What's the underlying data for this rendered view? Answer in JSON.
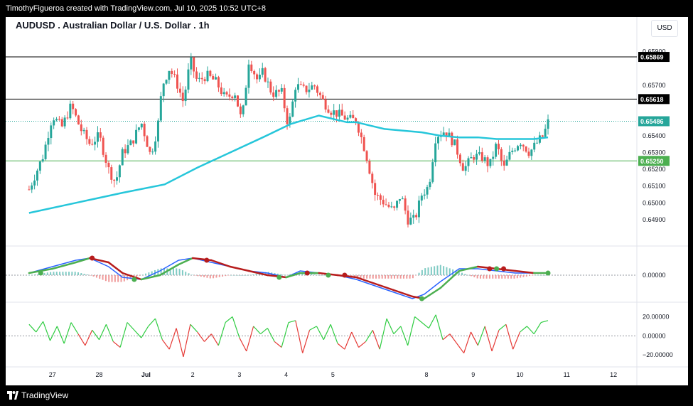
{
  "header": {
    "attribution": "TimothyFigueroa created with TradingView.com, Jul 10, 2025 10:52 UTC+8",
    "symbol_title": "AUDUSD . Australian Dollar / U.S. Dollar . 1h",
    "currency": "USD"
  },
  "footer": {
    "brand": "TradingView"
  },
  "colors": {
    "up": "#26a69a",
    "down": "#ef5350",
    "ma": "#26c6da",
    "macd": "#2962ff",
    "signal_up": "#4caf50",
    "signal_down": "#b71c1c",
    "rsi_up": "#2ecc40",
    "rsi_down": "#e53935",
    "level_black": "#000000",
    "level_green": "#4caf50"
  },
  "chart_data": [
    {
      "type": "candlestick",
      "panel": "price",
      "y_range": [
        0.6476,
        0.6592
      ],
      "price_ticks": [
        "0.65900",
        "0.65700",
        "0.65400",
        "0.65300",
        "0.65200",
        "0.65100",
        "0.65000",
        "0.64900"
      ],
      "price_tick_values": [
        0.659,
        0.657,
        0.654,
        0.653,
        0.652,
        0.651,
        0.65,
        0.649
      ],
      "x_labels": [
        "27",
        "28",
        "Jul",
        "2",
        "3",
        "4",
        "5",
        "8",
        "9",
        "10",
        "11",
        "12"
      ],
      "x_label_positions": [
        0.5,
        1.5,
        2.5,
        3.5,
        4.5,
        5.5,
        6.5,
        8.5,
        9.5,
        10.5,
        11.5,
        12.5
      ],
      "x_range": [
        -0.5,
        13.0
      ],
      "levels": [
        {
          "label": "0.65869",
          "value": 0.65869,
          "style": "black-line"
        },
        {
          "label": "0.65618",
          "value": 0.65618,
          "style": "black-line"
        },
        {
          "label": "0.65486",
          "value": 0.65486,
          "style": "teal-dotted-current"
        },
        {
          "label": "0.65250",
          "value": 0.6525,
          "style": "green-line"
        }
      ],
      "close_path": [
        [
          0.0,
          0.6508
        ],
        [
          0.3,
          0.6528
        ],
        [
          0.5,
          0.6552
        ],
        [
          0.7,
          0.6545
        ],
        [
          0.9,
          0.6558
        ],
        [
          1.1,
          0.6544
        ],
        [
          1.3,
          0.6535
        ],
        [
          1.5,
          0.654
        ],
        [
          1.7,
          0.652
        ],
        [
          1.85,
          0.6512
        ],
        [
          2.0,
          0.653
        ],
        [
          2.2,
          0.6536
        ],
        [
          2.4,
          0.6548
        ],
        [
          2.6,
          0.6528
        ],
        [
          2.75,
          0.6545
        ],
        [
          2.85,
          0.657
        ],
        [
          3.0,
          0.658
        ],
        [
          3.15,
          0.6572
        ],
        [
          3.3,
          0.656
        ],
        [
          3.45,
          0.6585
        ],
        [
          3.6,
          0.6572
        ],
        [
          3.8,
          0.6576
        ],
        [
          4.0,
          0.6572
        ],
        [
          4.2,
          0.6562
        ],
        [
          4.4,
          0.6566
        ],
        [
          4.55,
          0.6548
        ],
        [
          4.7,
          0.6585
        ],
        [
          4.9,
          0.6572
        ],
        [
          5.0,
          0.6578
        ],
        [
          5.2,
          0.6565
        ],
        [
          5.4,
          0.6566
        ],
        [
          5.55,
          0.6545
        ],
        [
          5.7,
          0.657
        ],
        [
          5.9,
          0.6567
        ],
        [
          6.1,
          0.657
        ],
        [
          6.3,
          0.656
        ],
        [
          6.45,
          0.6555
        ],
        [
          6.6,
          0.6553
        ],
        [
          6.8,
          0.655
        ],
        [
          7.0,
          0.6549
        ],
        [
          7.2,
          0.653
        ],
        [
          7.4,
          0.6505
        ],
        [
          7.6,
          0.65
        ],
        [
          7.8,
          0.6495
        ],
        [
          7.95,
          0.6505
        ],
        [
          8.1,
          0.649
        ],
        [
          8.25,
          0.649
        ],
        [
          8.4,
          0.6505
        ],
        [
          8.55,
          0.651
        ],
        [
          8.7,
          0.654
        ],
        [
          8.9,
          0.6543
        ],
        [
          9.1,
          0.6535
        ],
        [
          9.3,
          0.652
        ],
        [
          9.5,
          0.6528
        ],
        [
          9.7,
          0.6527
        ],
        [
          9.85,
          0.6522
        ],
        [
          10.0,
          0.6535
        ],
        [
          10.15,
          0.652
        ],
        [
          10.3,
          0.653
        ],
        [
          10.5,
          0.6537
        ],
        [
          10.7,
          0.653
        ],
        [
          10.9,
          0.6537
        ],
        [
          11.0,
          0.654
        ],
        [
          11.1,
          0.6548
        ]
      ]
    },
    {
      "type": "line",
      "panel": "price",
      "name": "",
      "x": [
        0.0,
        1.0,
        2.0,
        2.9,
        3.6,
        4.3,
        5.0,
        5.6,
        6.2,
        6.8,
        7.0,
        7.3,
        7.6,
        8.0,
        8.4,
        8.8,
        9.2,
        9.6,
        10.0,
        10.4,
        10.8,
        11.1
      ],
      "values": [
        0.6494,
        0.65,
        0.6506,
        0.6511,
        0.6521,
        0.653,
        0.6539,
        0.6547,
        0.6552,
        0.6548,
        0.6548,
        0.6546,
        0.6544,
        0.6543,
        0.6542,
        0.654,
        0.6539,
        0.6539,
        0.6538,
        0.6538,
        0.6538,
        0.6539
      ]
    },
    {
      "type": "macd",
      "panel": "macd",
      "y_range": [
        -0.0011,
        0.0011
      ],
      "ticks": [
        "0.00000"
      ],
      "tick_values": [
        0
      ],
      "macd_x": [
        0.0,
        0.5,
        1.0,
        1.3,
        1.7,
        2.0,
        2.4,
        2.8,
        3.2,
        3.5,
        3.9,
        4.3,
        4.7,
        5.1,
        5.5,
        5.8,
        6.2,
        6.6,
        7.0,
        7.4,
        7.8,
        8.2,
        8.45,
        8.8,
        9.2,
        9.6,
        10.0,
        10.4,
        10.8,
        11.1
      ],
      "macd": [
        0.0001,
        0.0004,
        0.0007,
        0.0008,
        0.0004,
        -0.0001,
        -0.0002,
        0.0002,
        0.0007,
        0.0008,
        0.0006,
        0.0004,
        0.0002,
        0.0001,
        -0.0001,
        0.0002,
        0.0001,
        0.0,
        -0.0002,
        -0.0005,
        -0.0008,
        -0.0011,
        -0.0009,
        -0.0003,
        0.0003,
        0.0003,
        0.0002,
        0.0001,
        0.0001,
        0.0001
      ],
      "signal": [
        0.0001,
        0.0003,
        0.0006,
        0.0008,
        0.0006,
        0.0001,
        -0.0002,
        0.0,
        0.0005,
        0.0008,
        0.0007,
        0.0004,
        0.0002,
        0.0,
        -0.0001,
        0.0001,
        0.0001,
        0.0,
        -0.0001,
        -0.0004,
        -0.0007,
        -0.001,
        -0.0011,
        -0.0006,
        0.0002,
        0.0004,
        0.0003,
        0.0002,
        0.0001,
        0.0001
      ],
      "cross_points": [
        [
          0.25,
          0.0001,
          "up"
        ],
        [
          1.35,
          0.0008,
          "down"
        ],
        [
          2.25,
          -0.0002,
          "up"
        ],
        [
          3.8,
          0.0007,
          "down"
        ],
        [
          5.35,
          -0.0001,
          "up"
        ],
        [
          5.95,
          0.0001,
          "down"
        ],
        [
          6.4,
          0.0,
          "up"
        ],
        [
          6.75,
          0.0,
          "down"
        ],
        [
          8.4,
          -0.0011,
          "up"
        ],
        [
          9.85,
          0.0003,
          "down"
        ],
        [
          10.0,
          0.0003,
          "up"
        ],
        [
          10.15,
          0.0003,
          "down"
        ],
        [
          11.1,
          0.0001,
          "up"
        ]
      ]
    },
    {
      "type": "line",
      "panel": "oscillator",
      "y_range": [
        -28,
        30
      ],
      "ticks": [
        "20.00000",
        "0.00000",
        "−20.00000"
      ],
      "tick_values": [
        20,
        0,
        -20
      ],
      "x": [
        0.0,
        0.15,
        0.3,
        0.45,
        0.6,
        0.75,
        0.9,
        1.05,
        1.2,
        1.35,
        1.5,
        1.65,
        1.8,
        1.95,
        2.1,
        2.25,
        2.4,
        2.55,
        2.7,
        2.85,
        3.0,
        3.15,
        3.3,
        3.45,
        3.6,
        3.75,
        3.9,
        4.05,
        4.2,
        4.35,
        4.5,
        4.65,
        4.8,
        4.95,
        5.1,
        5.25,
        5.4,
        5.55,
        5.7,
        5.85,
        6.0,
        6.15,
        6.3,
        6.45,
        6.6,
        6.75,
        6.9,
        7.05,
        7.2,
        7.35,
        7.5,
        7.65,
        7.8,
        7.95,
        8.1,
        8.25,
        8.4,
        8.55,
        8.7,
        8.85,
        9.0,
        9.15,
        9.3,
        9.45,
        9.6,
        9.75,
        9.9,
        10.05,
        10.2,
        10.35,
        10.5,
        10.65,
        10.8,
        10.95,
        11.1
      ],
      "values": [
        12,
        4,
        15,
        -5,
        10,
        -8,
        14,
        2,
        -10,
        6,
        -4,
        12,
        -6,
        -12,
        14,
        6,
        -2,
        10,
        18,
        -4,
        -14,
        8,
        -22,
        12,
        4,
        -6,
        2,
        -10,
        14,
        20,
        -2,
        -16,
        10,
        2,
        8,
        -6,
        -12,
        14,
        16,
        -18,
        6,
        10,
        -4,
        12,
        -8,
        -14,
        4,
        -12,
        -6,
        6,
        -14,
        18,
        2,
        10,
        -10,
        20,
        14,
        8,
        22,
        -4,
        2,
        -8,
        -18,
        4,
        -10,
        10,
        -16,
        6,
        12,
        -14,
        4,
        10,
        2,
        14,
        16
      ],
      "threshold": 0
    }
  ]
}
